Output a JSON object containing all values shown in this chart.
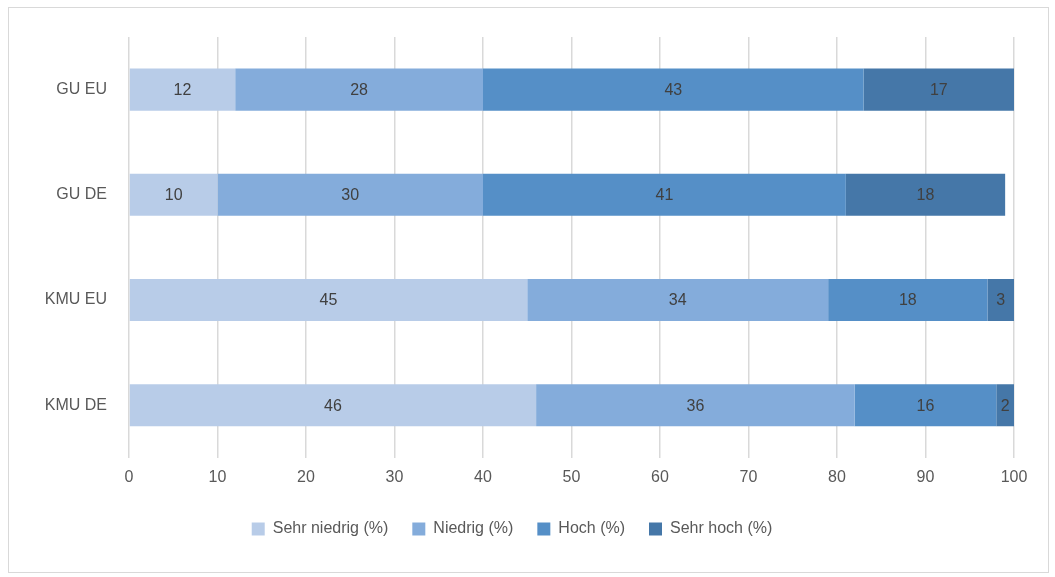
{
  "chart_data": {
    "type": "bar",
    "orientation": "horizontal",
    "stacked": true,
    "categories": [
      "GU EU",
      "GU DE",
      "KMU EU",
      "KMU DE"
    ],
    "series": [
      {
        "name": "Sehr niedrig (%)",
        "color": "#b8cce8",
        "values": [
          12,
          10,
          45,
          46
        ]
      },
      {
        "name": "Niedrig (%)",
        "color": "#84acdb",
        "values": [
          28,
          30,
          34,
          36
        ]
      },
      {
        "name": "Hoch (%)",
        "color": "#558fc7",
        "values": [
          43,
          41,
          18,
          16
        ]
      },
      {
        "name": "Sehr hoch (%)",
        "color": "#4577a8",
        "values": [
          17,
          18,
          3,
          2
        ]
      }
    ],
    "xlim": [
      0,
      100
    ],
    "xticks": [
      0,
      10,
      20,
      30,
      40,
      50,
      60,
      70,
      80,
      90,
      100
    ],
    "grid": "x",
    "legend": "bottom",
    "data_labels": true
  }
}
